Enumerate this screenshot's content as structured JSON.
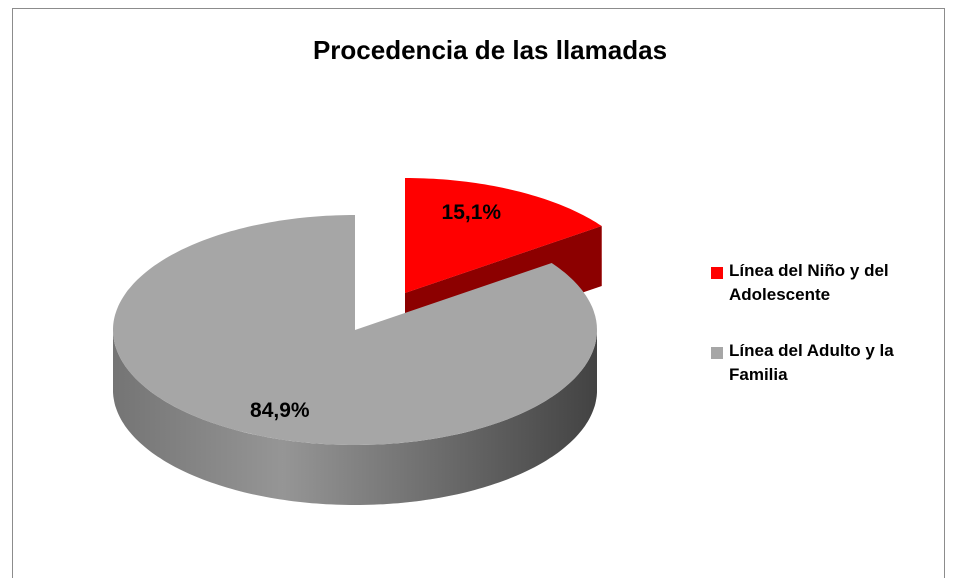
{
  "chart_data": {
    "type": "pie",
    "title": "Procedencia de las llamadas",
    "categories": [
      "Línea del Niño y del Adolescente",
      "Línea del Adulto y la Familia"
    ],
    "values": [
      15.1,
      84.9
    ],
    "value_labels": [
      "15,1%",
      "84,9%"
    ],
    "colors": [
      "#ff0000",
      "#a6a6a6"
    ],
    "legend": "right"
  }
}
